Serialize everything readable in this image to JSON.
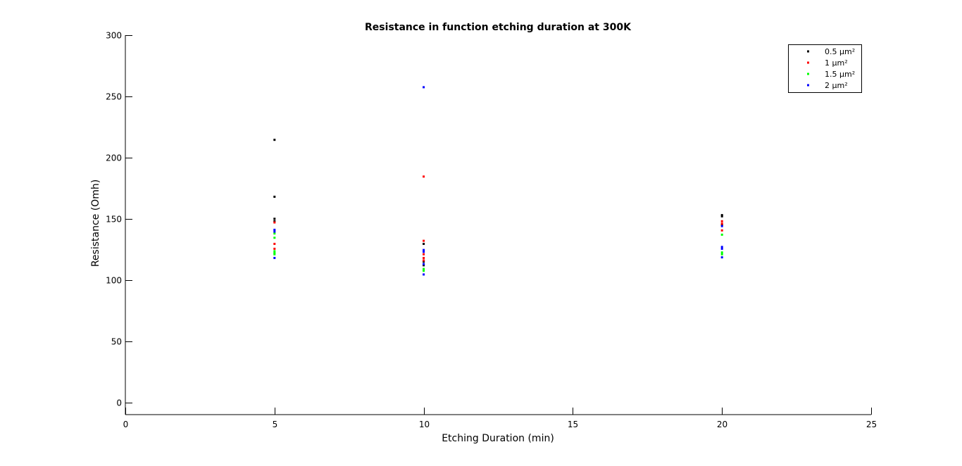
{
  "chart_data": {
    "type": "scatter",
    "title": "Resistance in function etching duration at 300K",
    "xlabel": "Etching Duration (min)",
    "ylabel": "Resistance (Omh)",
    "xlim": [
      0,
      25
    ],
    "ylim": [
      -10,
      300
    ],
    "xticks": [
      0,
      5,
      10,
      15,
      20,
      25
    ],
    "yticks": [
      0,
      50,
      100,
      150,
      200,
      250,
      300
    ],
    "grid": false,
    "legend_position": "top-right",
    "series": [
      {
        "name": "0.5 µm²",
        "color": "#000000",
        "points": [
          [
            5,
            214.5
          ],
          [
            5,
            168
          ],
          [
            5,
            150
          ],
          [
            5,
            148
          ],
          [
            10,
            129.5
          ],
          [
            10,
            115
          ],
          [
            10,
            112
          ],
          [
            20,
            153
          ],
          [
            20,
            152
          ],
          [
            20,
            145
          ]
        ]
      },
      {
        "name": "1 µm²",
        "color": "#ff0000",
        "points": [
          [
            5,
            147
          ],
          [
            5,
            129.5
          ],
          [
            5,
            125.5
          ],
          [
            10,
            184.5
          ],
          [
            10,
            132
          ],
          [
            10,
            121
          ],
          [
            10,
            118
          ],
          [
            10,
            116
          ],
          [
            20,
            148
          ],
          [
            20,
            146
          ],
          [
            20,
            140.5
          ]
        ]
      },
      {
        "name": "1.5 µm²",
        "color": "#00ff00",
        "points": [
          [
            5,
            138
          ],
          [
            5,
            134.5
          ],
          [
            5,
            123.5
          ],
          [
            5,
            122
          ],
          [
            5,
            121
          ],
          [
            10,
            109
          ],
          [
            10,
            107.5
          ],
          [
            20,
            137
          ],
          [
            20,
            122.5
          ],
          [
            20,
            121
          ]
        ]
      },
      {
        "name": "2 µm²",
        "color": "#0000ff",
        "points": [
          [
            5,
            141
          ],
          [
            5,
            139.5
          ],
          [
            5,
            118
          ],
          [
            10,
            257.5
          ],
          [
            10,
            124.5
          ],
          [
            10,
            123
          ],
          [
            10,
            113
          ],
          [
            10,
            104.5
          ],
          [
            20,
            144
          ],
          [
            20,
            127
          ],
          [
            20,
            125.5
          ],
          [
            20,
            118.5
          ]
        ]
      }
    ]
  }
}
